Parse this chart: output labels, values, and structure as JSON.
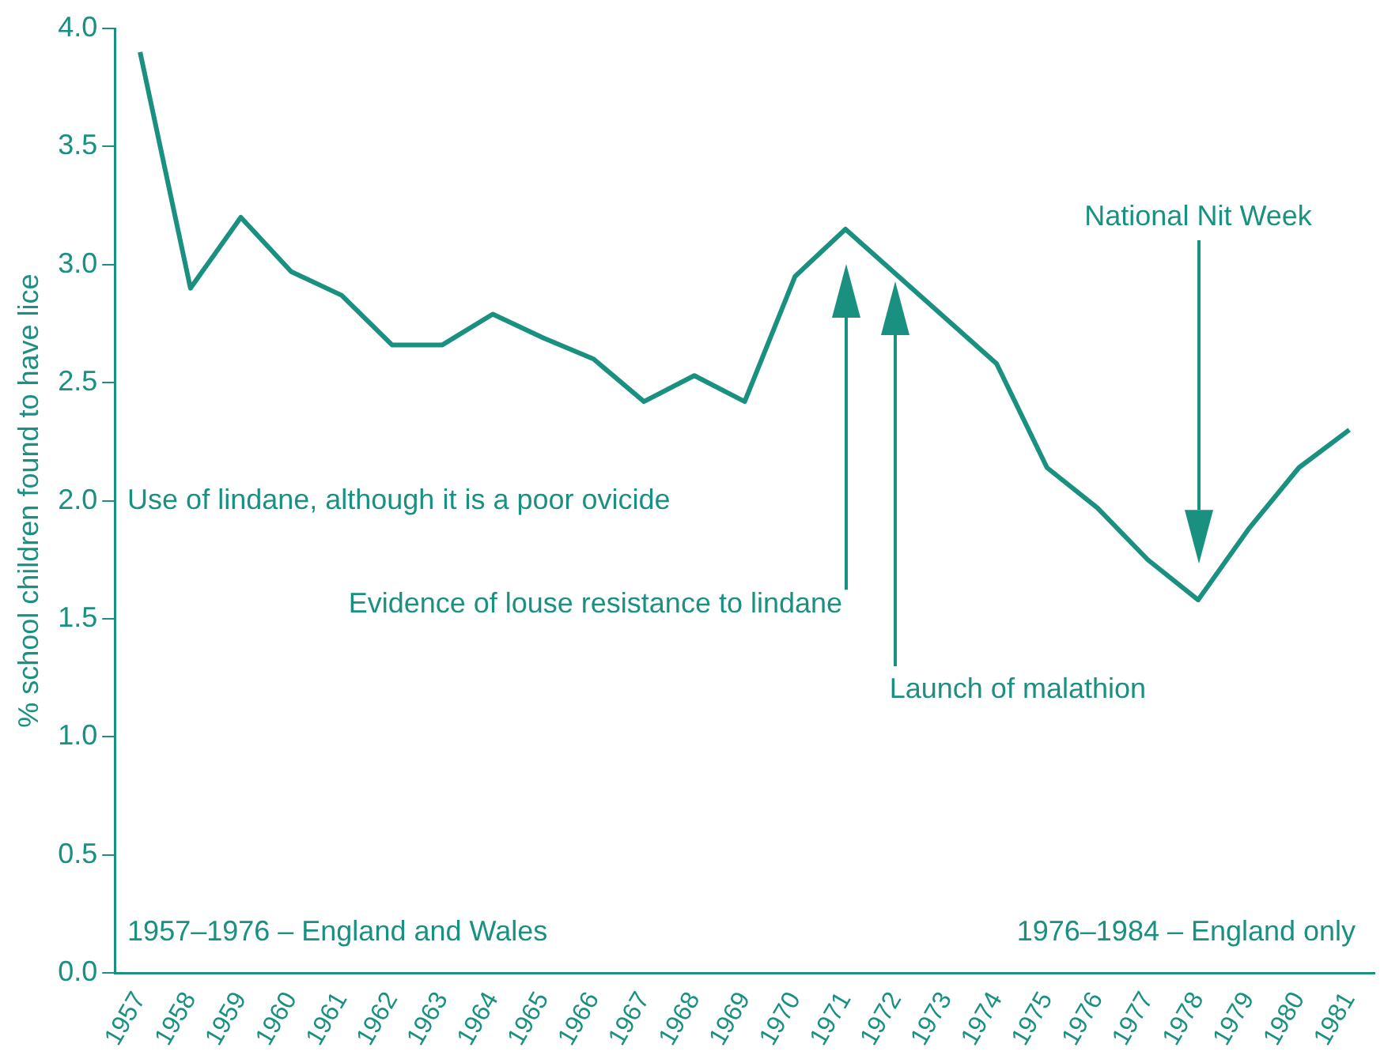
{
  "chart_data": {
    "type": "line",
    "ylabel": "% school children found to have lice",
    "categories": [
      "1957",
      "1958",
      "1959",
      "1960",
      "1961",
      "1962",
      "1963",
      "1964",
      "1965",
      "1966",
      "1967",
      "1968",
      "1969",
      "1970",
      "1971",
      "1972",
      "1973",
      "1974",
      "1975",
      "1976",
      "1977",
      "1978",
      "1979",
      "1980",
      "1981"
    ],
    "values": [
      3.9,
      2.9,
      3.2,
      2.97,
      2.87,
      2.66,
      2.66,
      2.79,
      2.69,
      2.6,
      2.42,
      2.53,
      2.42,
      2.95,
      3.15,
      2.96,
      2.77,
      2.58,
      2.14,
      1.97,
      1.75,
      1.58,
      1.88,
      2.14,
      2.3
    ],
    "color": "#1a9080",
    "ylim": [
      0,
      4
    ],
    "yticks": [
      {
        "value": 0,
        "label": "0.0"
      },
      {
        "value": 0.5,
        "label": "0.5"
      },
      {
        "value": 1,
        "label": "1.0"
      },
      {
        "value": 1.5,
        "label": "1.5"
      },
      {
        "value": 2,
        "label": "2.0"
      },
      {
        "value": 2.5,
        "label": "2.5"
      },
      {
        "value": 3,
        "label": "3.0"
      },
      {
        "value": 3.5,
        "label": "3.5"
      },
      {
        "value": 4,
        "label": "4.0"
      }
    ],
    "grid": false,
    "legend": false,
    "marker": "none",
    "line_style": "solid",
    "annotations": [
      "Use of lindane, although it is a poor ovicide",
      "Evidence of louse resistance to lindane",
      "Launch of malathion",
      "National Nit Week",
      "1957–1976 – England and Wales",
      "1976–1984 – England only"
    ]
  }
}
